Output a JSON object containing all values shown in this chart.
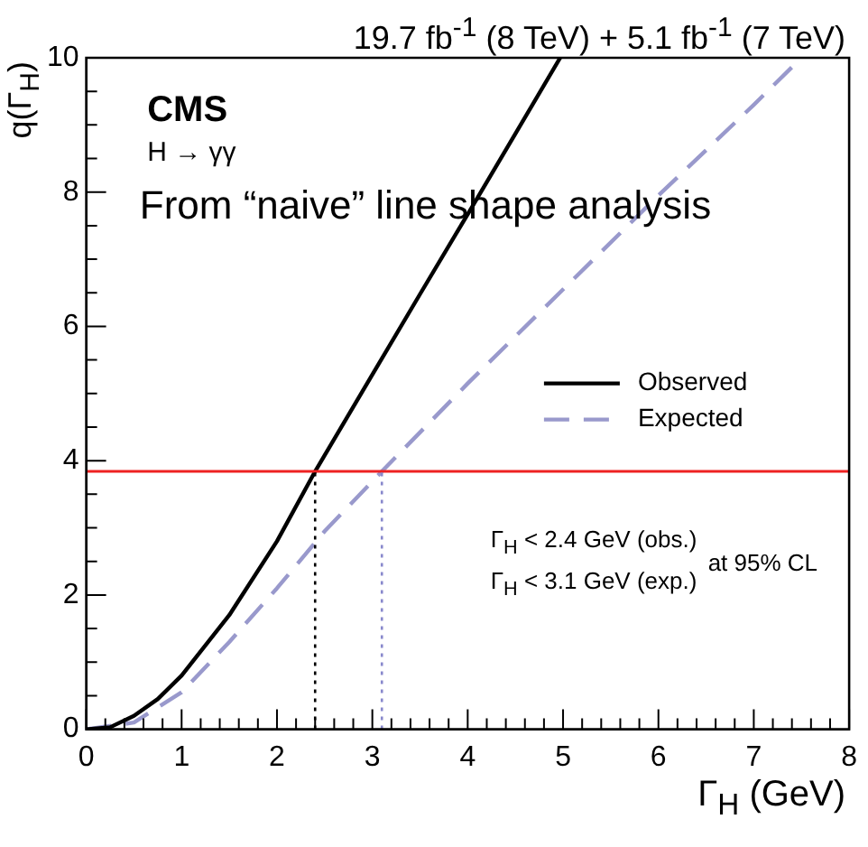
{
  "chart_data": {
    "type": "line",
    "title": "19.7 fb$^{-1}$ (8 TeV) + 5.1 fb$^{-1}$ (7 TeV)",
    "xlabel": "Γ$_{H}$ (GeV)",
    "ylabel": "q(Γ$_{H}$)",
    "annotations": [
      "CMS",
      "H → γγ",
      "From “naive” line shape analysis",
      "Γ$_{H}$ < 2.4 GeV (obs.)",
      "Γ$_{H}$ < 3.1 GeV (exp.)",
      "at 95% CL"
    ],
    "series": [
      {
        "name": "Observed",
        "color": "#000000",
        "line_style": "solid",
        "x": [
          0,
          0.25,
          0.5,
          0.75,
          1,
          1.5,
          2,
          2.4,
          3,
          3.5,
          4,
          4.5,
          4.97
        ],
        "values": [
          0,
          0.03,
          0.2,
          0.45,
          0.8,
          1.7,
          2.8,
          3.84,
          5.28,
          6.48,
          7.67,
          8.87,
          10
        ]
      },
      {
        "name": "Expected",
        "color": "#9999cc",
        "line_style": "dashed",
        "x": [
          0,
          0.5,
          1,
          1.5,
          2,
          2.5,
          3.1,
          4,
          5,
          6,
          7,
          7.5
        ],
        "values": [
          0,
          0.1,
          0.55,
          1.3,
          2.1,
          2.95,
          3.84,
          5.15,
          6.55,
          7.95,
          9.3,
          10
        ]
      }
    ],
    "ref_lines": [
      {
        "axis": "y",
        "value": 3.84,
        "color": "#ee2222",
        "line_style": "solid"
      },
      {
        "axis": "x",
        "value": 2.4,
        "color": "#000000",
        "line_style": "dotted"
      },
      {
        "axis": "x",
        "value": 3.1,
        "color": "#8888cc",
        "line_style": "dotted"
      }
    ],
    "xlim": [
      0,
      8
    ],
    "xticks": [
      0,
      1,
      2,
      3,
      4,
      5,
      6,
      7,
      8
    ],
    "ylim": [
      0,
      10
    ],
    "yticks": [
      0,
      2,
      4,
      6,
      8,
      10
    ],
    "grid": false,
    "legend": "right"
  }
}
